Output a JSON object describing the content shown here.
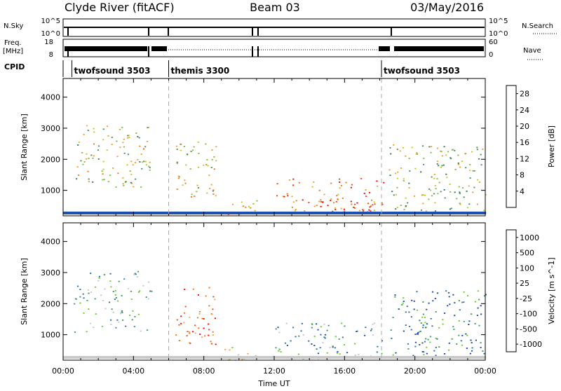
{
  "header": {
    "title": "Clyde River (fitACF)",
    "beam": "Beam 03",
    "date": "03/May/2016"
  },
  "strips": {
    "nsky_label": "N.Sky",
    "nsky_ticks": [
      "10^5",
      "10^0"
    ],
    "nsearch_label": "N.Search",
    "nsearch_ticks": [
      "10^5",
      "10^0"
    ],
    "freq_label": "Freq.",
    "freq_unit": "[MHz]",
    "freq_ticks": [
      "18",
      "8"
    ],
    "nave_label": "Nave",
    "nave_ticks": [
      "60",
      "0"
    ],
    "cpid_label": "CPID",
    "cpid_segments": [
      {
        "name": "twofsound 3503",
        "start_h": 0.5,
        "end_h": 6.0
      },
      {
        "name": "themis 3300",
        "start_h": 6.0,
        "end_h": 18.1
      },
      {
        "name": "twofsound 3503",
        "start_h": 18.1,
        "end_h": 24.0
      }
    ]
  },
  "chart_data": [
    {
      "type": "heatmap",
      "xlabel": "",
      "ylabel": "Slant Range [km]",
      "xlim": [
        0,
        24
      ],
      "ylim": [
        180,
        4600
      ],
      "yticks": [
        1000,
        2000,
        3000,
        4000
      ],
      "x_tick_labels": [
        "00:00",
        "04:00",
        "08:00",
        "12:00",
        "16:00",
        "20:00",
        "00:00"
      ],
      "colorbar": {
        "label": "Power [dB]",
        "ticks": [
          "4",
          "8",
          "12",
          "16",
          "20",
          "24",
          "28"
        ],
        "colors": [
          "#0a2cff",
          "#1e4fb4",
          "#2e7a52",
          "#4f8f60",
          "#7fbf3f",
          "#c8c81e",
          "#f0a030",
          "#f07a14",
          "#f04a0a",
          "#ff0000"
        ]
      },
      "regions": [
        {
          "x": [
            0.6,
            5.0
          ],
          "y": [
            1100,
            3100
          ],
          "level": 0.5
        },
        {
          "x": [
            6.3,
            8.7
          ],
          "y": [
            700,
            2600
          ],
          "level": 0.55
        },
        {
          "x": [
            9.0,
            11.0
          ],
          "y": [
            200,
            700
          ],
          "level": 0.6
        },
        {
          "x": [
            12.0,
            18.2
          ],
          "y": [
            250,
            1400
          ],
          "level": 0.75
        },
        {
          "x": [
            14.6,
            18.0
          ],
          "y": [
            380,
            700
          ],
          "level": 0.95
        },
        {
          "x": [
            18.5,
            24.0
          ],
          "y": [
            300,
            2500
          ],
          "level": 0.45
        }
      ]
    },
    {
      "type": "heatmap",
      "xlabel": "Time UT",
      "ylabel": "Slant Range [km]",
      "xlim": [
        0,
        24
      ],
      "ylim": [
        180,
        4600
      ],
      "yticks": [
        1000,
        2000,
        3000,
        4000
      ],
      "x_tick_labels": [
        "00:00",
        "04:00",
        "08:00",
        "12:00",
        "16:00",
        "20:00",
        "00:00"
      ],
      "colorbar": {
        "label": "Velocity [m s^-1]",
        "ticks": [
          "1000",
          "500",
          "100",
          "25",
          "-25",
          "-100",
          "-500",
          "-1000"
        ],
        "colors": [
          "#1e46b4",
          "#2a70a8",
          "#3c9c5a",
          "#6ccc2c",
          "#c8c8c8",
          "#ffffff",
          "#f0a850",
          "#f07814",
          "#f04a14",
          "#ff0000"
        ]
      },
      "regions": [
        {
          "x": [
            0.6,
            5.0
          ],
          "y": [
            1100,
            3100
          ],
          "level": 0.35
        },
        {
          "x": [
            6.3,
            8.7
          ],
          "y": [
            700,
            2600
          ],
          "level": 0.8
        },
        {
          "x": [
            9.0,
            11.0
          ],
          "y": [
            200,
            700
          ],
          "level": 0.5
        },
        {
          "x": [
            12.0,
            18.2
          ],
          "y": [
            250,
            1400
          ],
          "level": 0.25
        },
        {
          "x": [
            18.5,
            24.0
          ],
          "y": [
            300,
            2500
          ],
          "level": 0.15
        }
      ]
    }
  ]
}
